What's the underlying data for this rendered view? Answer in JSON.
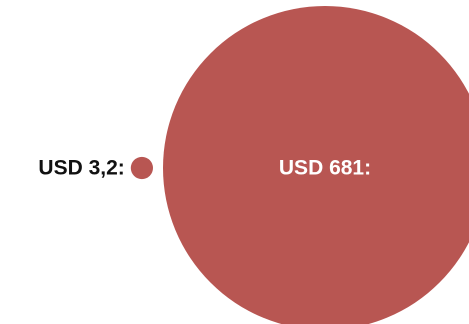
{
  "chart_data": {
    "type": "bubble",
    "unit": "USD",
    "color": "#b85652",
    "bubbles": [
      {
        "label": "USD 3,2:",
        "value": 3.2,
        "label_color": "#111111",
        "label_position": "left"
      },
      {
        "label": "USD 681:",
        "value": 681,
        "label_color": "#ffffff",
        "label_position": "inside"
      }
    ]
  }
}
